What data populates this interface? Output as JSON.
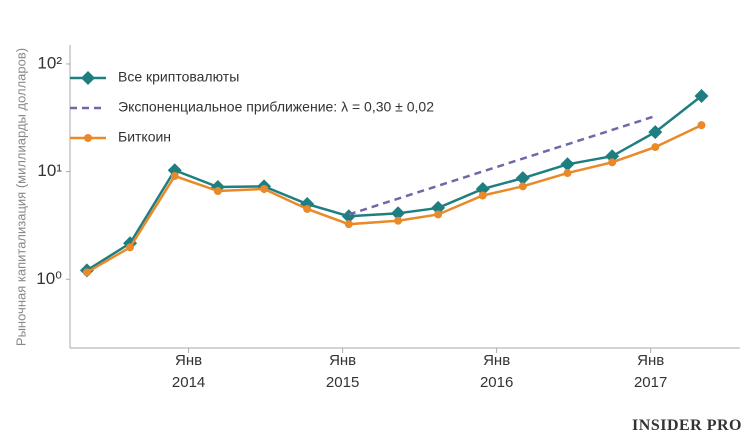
{
  "chart_data": {
    "type": "line",
    "y_label": "Рыночная капитализация (миллиарды долларов)",
    "log_y": true,
    "grid": false,
    "legend": "upper left",
    "x": [
      2013.34,
      2013.62,
      2013.91,
      2014.19,
      2014.49,
      2014.77,
      2015.04,
      2015.36,
      2015.62,
      2015.91,
      2016.17,
      2016.46,
      2016.75,
      2017.03,
      2017.33
    ],
    "series": [
      {
        "name": "Все криптовалюты",
        "color": "#1f7f80",
        "marker": "diamond",
        "values": [
          1.21,
          2.16,
          10.3,
          7.2,
          7.3,
          5.0,
          3.85,
          4.1,
          4.6,
          6.9,
          8.7,
          11.7,
          13.9,
          23.3,
          50.4
        ]
      },
      {
        "name": "Экспоненциальное приближение: λ = 0,30 ± 0,02",
        "color": "#7367a8",
        "dashed": true,
        "x": [
          2015.04,
          2017.03
        ],
        "values": [
          4.0,
          32.8
        ]
      },
      {
        "name": "Биткоин",
        "color": "#e9892a",
        "marker": "circle",
        "values": [
          1.16,
          1.98,
          9.1,
          6.6,
          6.9,
          4.5,
          3.25,
          3.5,
          4.0,
          6.0,
          7.3,
          9.7,
          12.2,
          16.9,
          27.0
        ]
      }
    ],
    "xlim": [
      2013.23,
      2017.58
    ],
    "xticks": [
      {
        "value": 2014,
        "label": "Янв\n2014"
      },
      {
        "value": 2015,
        "label": "Янв\n2015"
      },
      {
        "value": 2016,
        "label": "Янв\n2016"
      },
      {
        "value": 2017,
        "label": "Янв\n2017"
      }
    ],
    "ylim": [
      0.23,
      150
    ],
    "yticks": [
      {
        "value": 1,
        "label": "10⁰"
      },
      {
        "value": 10,
        "label": "10¹"
      },
      {
        "value": 100,
        "label": "10²"
      }
    ],
    "watermark": "INSIDER PRO"
  }
}
